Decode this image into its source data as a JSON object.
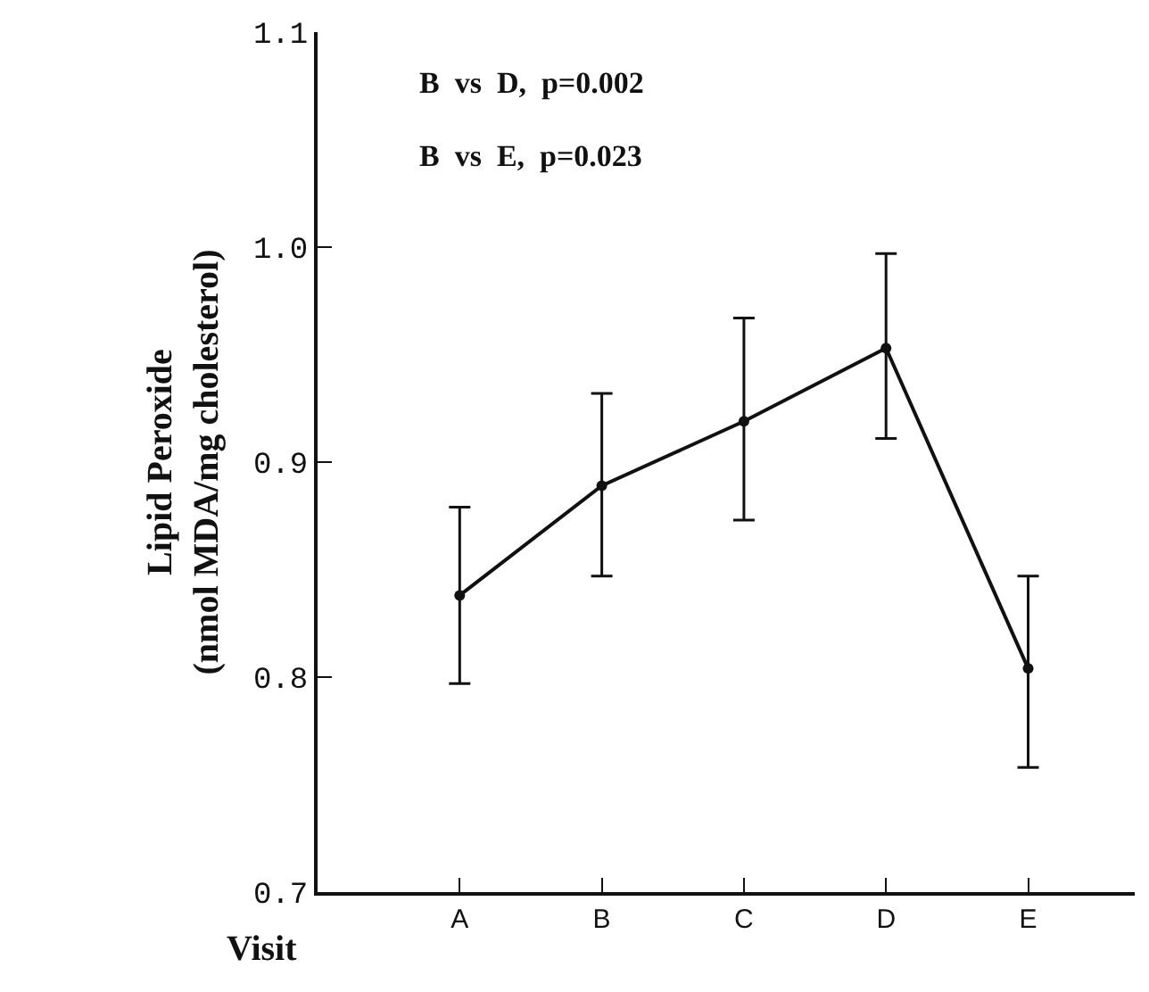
{
  "chart_data": {
    "type": "line",
    "ylabel": "Lipid Peroxide\n(nmol MDA/mg cholesterol)",
    "xlabel": "Visit",
    "categories": [
      "A",
      "B",
      "C",
      "D",
      "E"
    ],
    "series": [
      {
        "color": "#111111",
        "values": [
          0.838,
          0.889,
          0.919,
          0.953,
          0.804
        ],
        "errors": [
          [
            0.797,
            0.879
          ],
          [
            0.847,
            0.932
          ],
          [
            0.873,
            0.967
          ],
          [
            0.911,
            0.997
          ],
          [
            0.758,
            0.847
          ]
        ]
      }
    ],
    "ylim": [
      0.7,
      1.1
    ],
    "yticks": [
      {
        "value": 0.7,
        "label": "0.7"
      },
      {
        "value": 0.8,
        "label": "0.8"
      },
      {
        "value": 0.9,
        "label": "0.9"
      },
      {
        "value": 1.0,
        "label": "1.0"
      },
      {
        "value": 1.1,
        "label": "1.1"
      }
    ],
    "annotations": [
      "B  vs  D,  p=0.002",
      "B  vs  E,  p=0.023"
    ],
    "legend": false,
    "marker": "circle",
    "line_style": "solid"
  }
}
